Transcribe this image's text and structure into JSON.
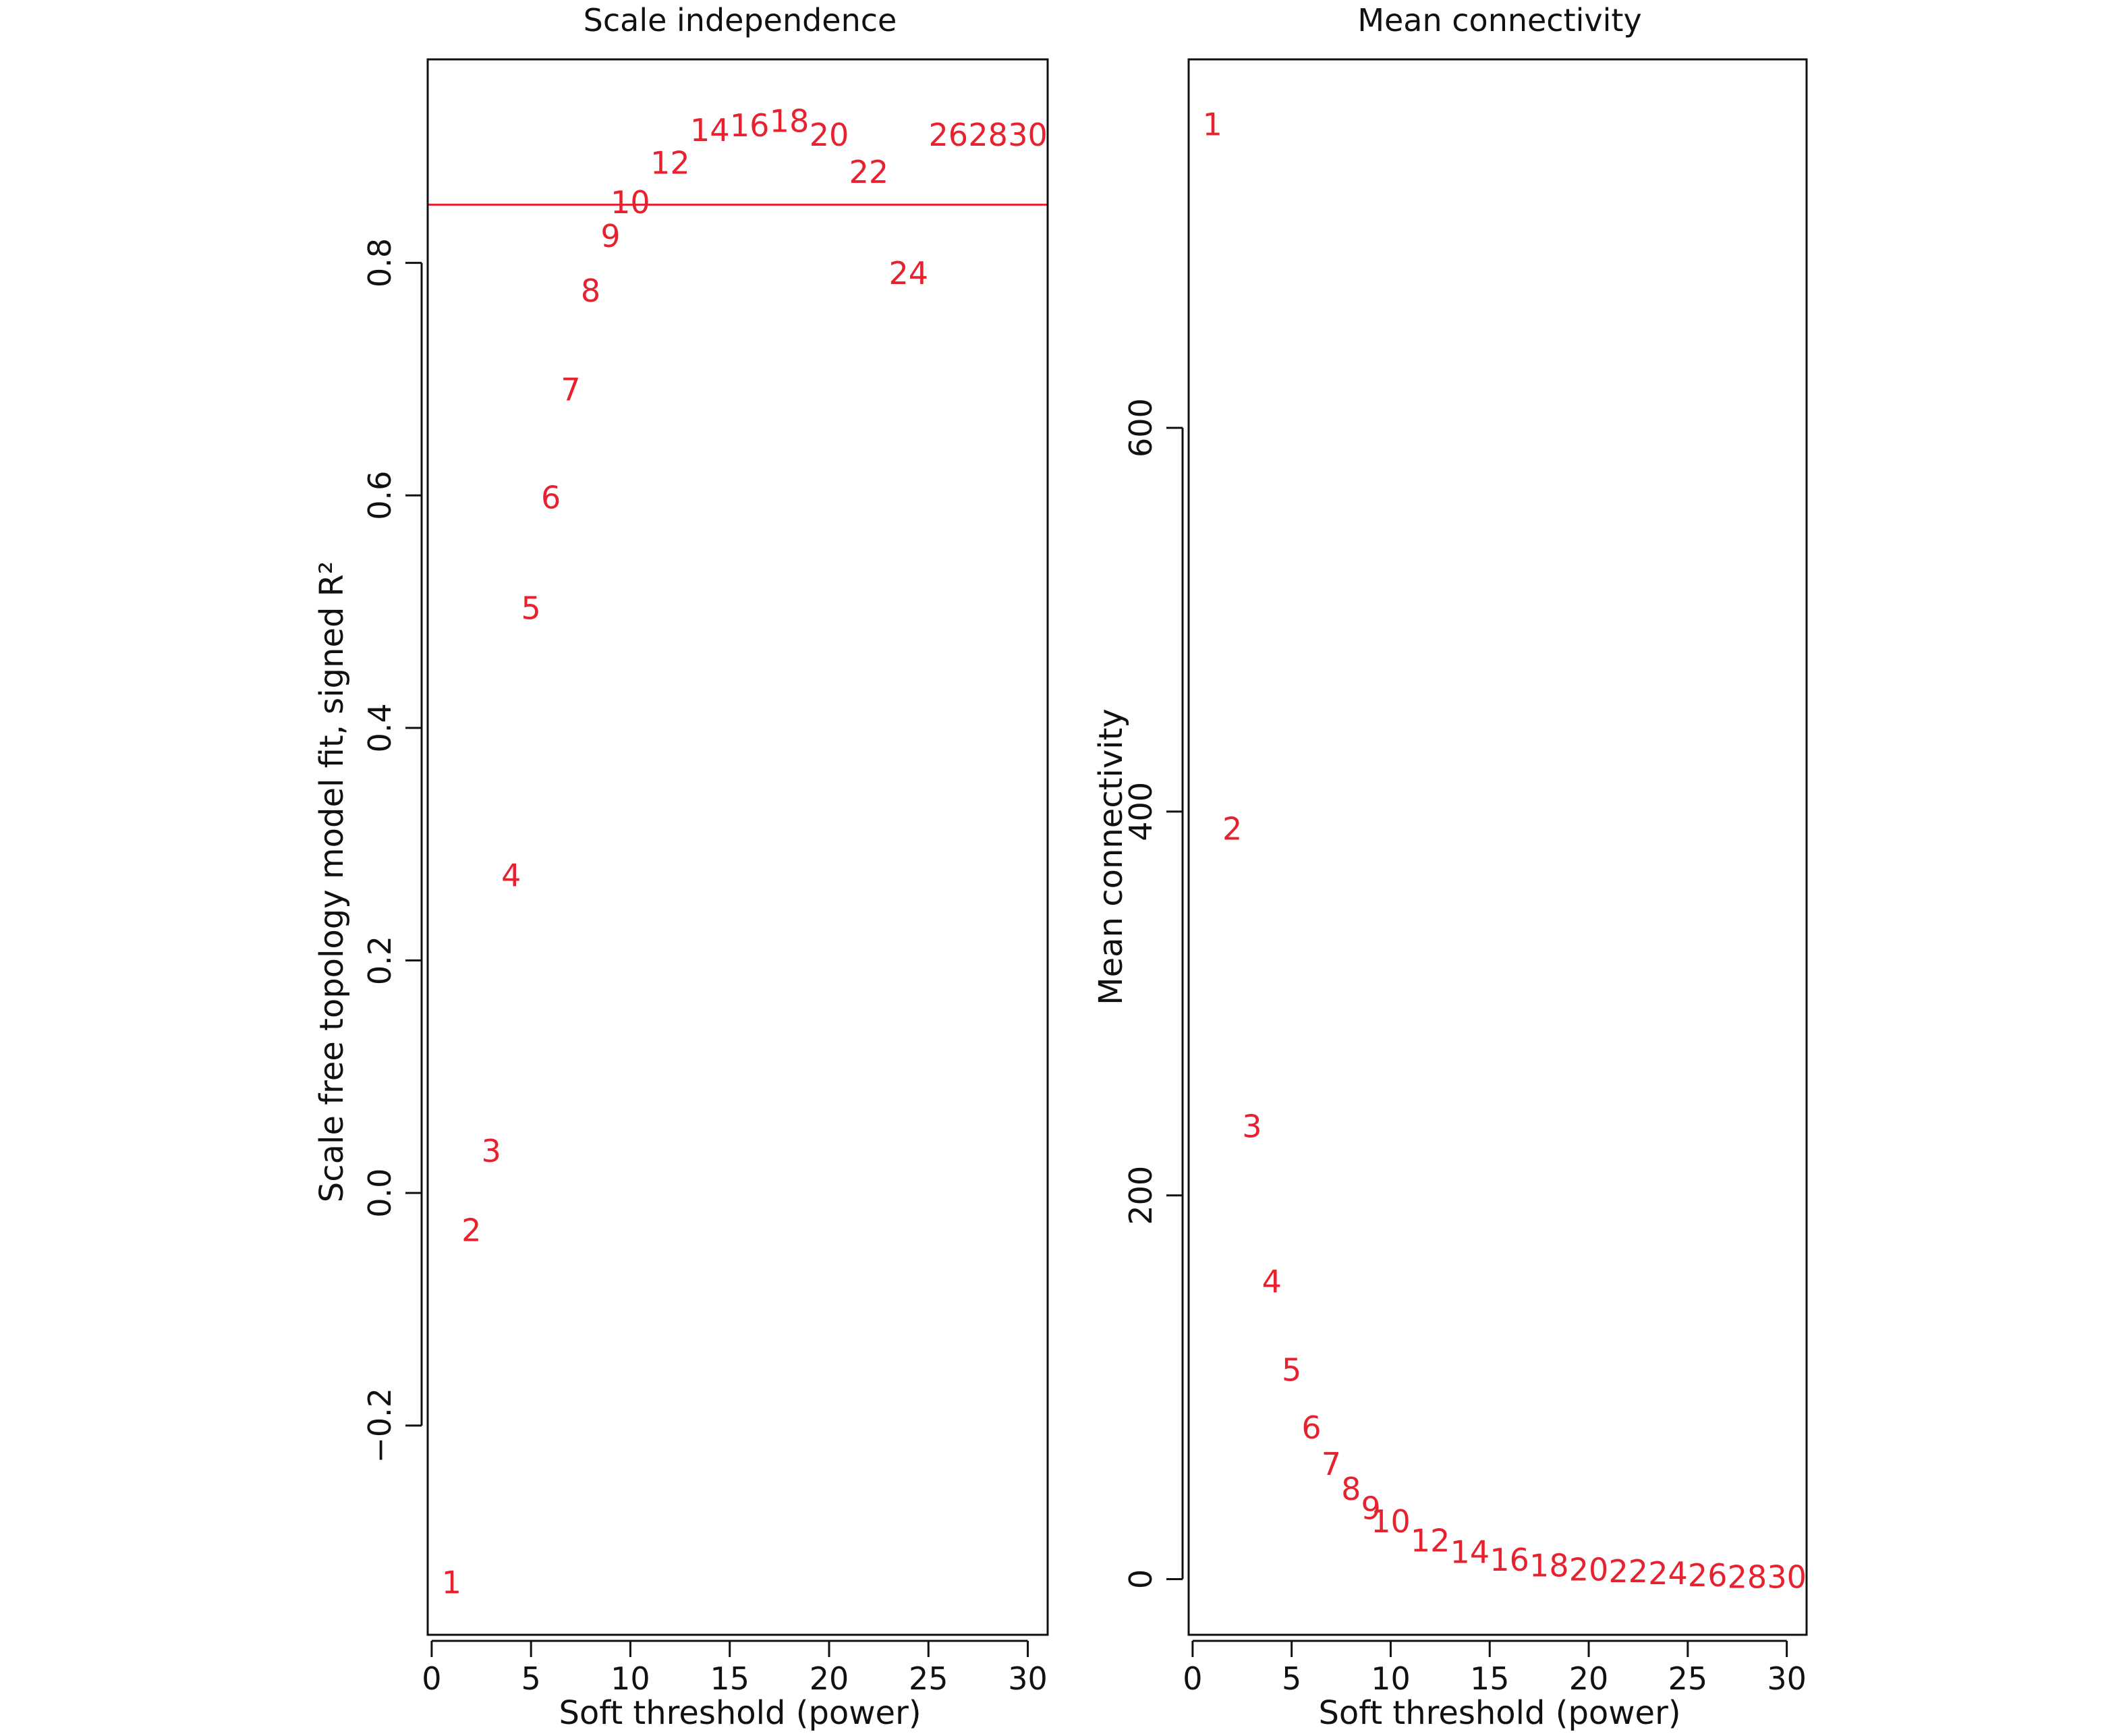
{
  "colors": {
    "points": "#e8212e",
    "cutoff": "#e8212e",
    "axis": "#111111"
  },
  "chart_data": [
    {
      "type": "scatter",
      "title": "Scale independence",
      "xlabel": "Soft threshold (power)",
      "ylabel": "Scale free topology model fit, signed R²",
      "xlim": [
        -0.2,
        31
      ],
      "ylim": [
        -0.38,
        0.975
      ],
      "xticks": [
        0,
        5,
        10,
        15,
        20,
        25,
        30
      ],
      "yticks": [
        -0.2,
        0.0,
        0.2,
        0.4,
        0.6,
        0.8
      ],
      "ytick_labels": [
        "−0.2",
        "0.0",
        "0.2",
        "0.4",
        "0.6",
        "0.8"
      ],
      "cutoff_line": 0.85,
      "grid": false,
      "legend": "none",
      "points": [
        {
          "label": "1",
          "x": 1,
          "y": -0.335
        },
        {
          "label": "2",
          "x": 2,
          "y": -0.032
        },
        {
          "label": "3",
          "x": 3,
          "y": 0.036
        },
        {
          "label": "4",
          "x": 4,
          "y": 0.273
        },
        {
          "label": "5",
          "x": 5,
          "y": 0.503
        },
        {
          "label": "6",
          "x": 6,
          "y": 0.598
        },
        {
          "label": "7",
          "x": 7,
          "y": 0.691
        },
        {
          "label": "8",
          "x": 8,
          "y": 0.776
        },
        {
          "label": "9",
          "x": 9,
          "y": 0.823
        },
        {
          "label": "10",
          "x": 10,
          "y": 0.852
        },
        {
          "label": "12",
          "x": 12,
          "y": 0.886
        },
        {
          "label": "14",
          "x": 14,
          "y": 0.914
        },
        {
          "label": "16",
          "x": 16,
          "y": 0.918
        },
        {
          "label": "18",
          "x": 18,
          "y": 0.922
        },
        {
          "label": "20",
          "x": 20,
          "y": 0.91
        },
        {
          "label": "22",
          "x": 22,
          "y": 0.878
        },
        {
          "label": "24",
          "x": 24,
          "y": 0.791
        },
        {
          "label": "26",
          "x": 26,
          "y": 0.91
        },
        {
          "label": "28",
          "x": 28,
          "y": 0.91
        },
        {
          "label": "30",
          "x": 30,
          "y": 0.91
        }
      ]
    },
    {
      "type": "scatter",
      "title": "Mean connectivity",
      "xlabel": "Soft threshold (power)",
      "ylabel": "Mean connectivity",
      "xlim": [
        -0.2,
        31
      ],
      "ylim": [
        -29,
        792
      ],
      "xticks": [
        0,
        5,
        10,
        15,
        20,
        25,
        30
      ],
      "yticks": [
        0,
        200,
        400,
        600
      ],
      "ytick_labels": [
        "0",
        "200",
        "400",
        "600"
      ],
      "grid": false,
      "legend": "none",
      "points": [
        {
          "label": "1",
          "x": 1,
          "y": 758
        },
        {
          "label": "2",
          "x": 2,
          "y": 391
        },
        {
          "label": "3",
          "x": 3,
          "y": 236
        },
        {
          "label": "4",
          "x": 4,
          "y": 155
        },
        {
          "label": "5",
          "x": 5,
          "y": 109
        },
        {
          "label": "6",
          "x": 6,
          "y": 79
        },
        {
          "label": "7",
          "x": 7,
          "y": 60
        },
        {
          "label": "8",
          "x": 8,
          "y": 47
        },
        {
          "label": "9",
          "x": 9,
          "y": 37
        },
        {
          "label": "10",
          "x": 10,
          "y": 30
        },
        {
          "label": "12",
          "x": 12,
          "y": 20
        },
        {
          "label": "14",
          "x": 14,
          "y": 14
        },
        {
          "label": "16",
          "x": 16,
          "y": 10
        },
        {
          "label": "18",
          "x": 18,
          "y": 7
        },
        {
          "label": "20",
          "x": 20,
          "y": 5
        },
        {
          "label": "22",
          "x": 22,
          "y": 4
        },
        {
          "label": "24",
          "x": 24,
          "y": 3
        },
        {
          "label": "26",
          "x": 26,
          "y": 2
        },
        {
          "label": "28",
          "x": 28,
          "y": 1
        },
        {
          "label": "30",
          "x": 30,
          "y": 1
        }
      ]
    }
  ]
}
